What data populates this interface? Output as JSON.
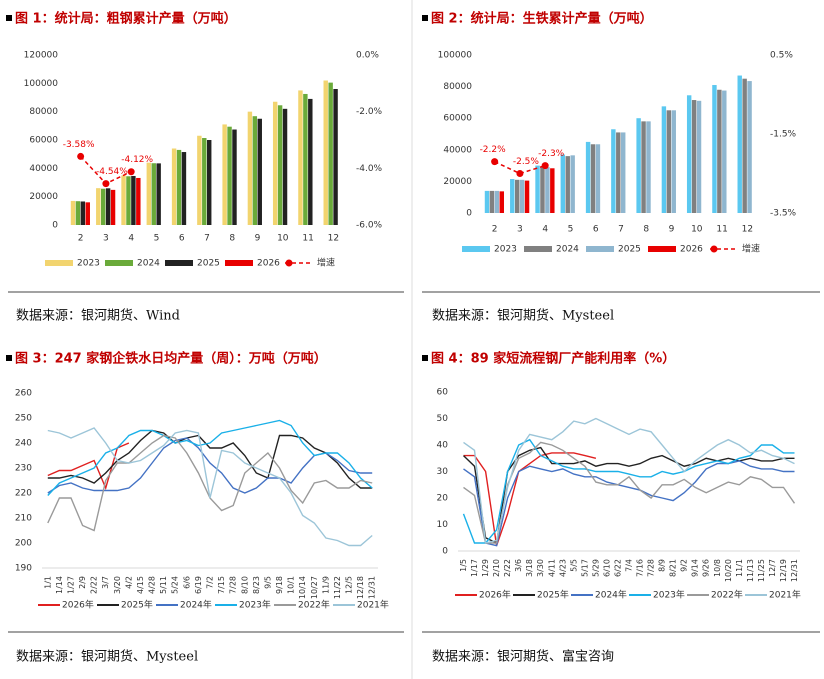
{
  "chart_data": [
    {
      "type": "bar",
      "title": "图 1：统计局：粗钢累计产量（万吨）",
      "source": "数据来源：银河期货、Wind",
      "categories": [
        "2",
        "3",
        "4",
        "5",
        "6",
        "7",
        "8",
        "9",
        "10",
        "11",
        "12"
      ],
      "series": [
        {
          "name": "2023",
          "color": "#f2d46f",
          "values": [
            17000,
            26000,
            35000,
            44000,
            54000,
            63000,
            71000,
            80000,
            87000,
            95000,
            102000
          ]
        },
        {
          "name": "2024",
          "color": "#6aaa3a",
          "values": [
            16800,
            25600,
            34400,
            43600,
            53000,
            61400,
            69400,
            76800,
            84500,
            92500,
            100500
          ]
        },
        {
          "name": "2025",
          "color": "#222222",
          "values": [
            16600,
            25900,
            34600,
            43500,
            51500,
            60000,
            67400,
            75000,
            82000,
            89000,
            96000
          ]
        },
        {
          "name": "2026",
          "color": "#e80000",
          "values": [
            16000,
            24800,
            33200,
            null,
            null,
            null,
            null,
            null,
            null,
            null,
            null
          ]
        },
        {
          "name": "增速",
          "color": "#e80000",
          "type": "line",
          "axis": "y2",
          "values": [
            -3.58,
            -4.54,
            -4.12,
            null,
            null,
            null,
            null,
            null,
            null,
            null,
            null
          ],
          "value_labels": [
            "-3.58%",
            "-4.54%",
            "-4.12%",
            null,
            null,
            null,
            null,
            null,
            null,
            null,
            null
          ]
        }
      ],
      "ylim": [
        0,
        120000
      ],
      "yticks": [
        0,
        20000,
        40000,
        60000,
        80000,
        100000,
        120000
      ],
      "y2lim": [
        -6,
        0
      ],
      "y2ticks": [
        {
          "value": -6,
          "label": "-6.0%"
        },
        {
          "value": -4,
          "label": "-4.0%"
        },
        {
          "value": -2,
          "label": "-2.0%"
        },
        {
          "value": 0,
          "label": "0.0%"
        }
      ],
      "grid": false,
      "legend": "bottom"
    },
    {
      "type": "bar",
      "title": "图 2：统计局：生铁累计产量（万吨）",
      "source": "数据来源：银河期货、Mysteel",
      "categories": [
        "2",
        "3",
        "4",
        "5",
        "6",
        "7",
        "8",
        "9",
        "10",
        "11",
        "12"
      ],
      "series": [
        {
          "name": "2023",
          "color": "#5bc8f0",
          "values": [
            14000,
            21500,
            30000,
            37000,
            45000,
            53000,
            60000,
            67500,
            74500,
            81000,
            87000
          ]
        },
        {
          "name": "2024",
          "color": "#808080",
          "values": [
            14000,
            21000,
            29000,
            36000,
            43500,
            51000,
            58000,
            65000,
            71500,
            78000,
            85000
          ]
        },
        {
          "name": "2025",
          "color": "#8fb6cf",
          "values": [
            14000,
            21000,
            29000,
            36500,
            43500,
            51000,
            58000,
            65000,
            71000,
            77500,
            83500
          ]
        },
        {
          "name": "2026",
          "color": "#e80000",
          "values": [
            13700,
            20500,
            28300,
            null,
            null,
            null,
            null,
            null,
            null,
            null,
            null
          ]
        },
        {
          "name": "增速",
          "color": "#e80000",
          "type": "line",
          "axis": "y2",
          "values": [
            -2.2,
            -2.5,
            -2.3,
            null,
            null,
            null,
            null,
            null,
            null,
            null,
            null
          ],
          "value_labels": [
            "-2.2%",
            "-2.5%",
            "-2.3%",
            null,
            null,
            null,
            null,
            null,
            null,
            null,
            null
          ]
        }
      ],
      "ylim": [
        0,
        100000
      ],
      "yticks": [
        0,
        20000,
        40000,
        60000,
        80000,
        100000
      ],
      "y2lim": [
        -3.5,
        0.5
      ],
      "y2ticks": [
        {
          "value": -3.5,
          "label": "-3.5%"
        },
        {
          "value": -1.5,
          "label": "-1.5%"
        },
        {
          "value": 0.5,
          "label": "0.5%"
        }
      ],
      "grid": false,
      "legend": "bottom"
    },
    {
      "type": "line",
      "title": "图 3：247 家钢企铁水日均产量（周）：万吨（万吨）",
      "source": "数据来源：银河期货、Mysteel",
      "categories": [
        "1/1",
        "1/14",
        "1/27",
        "2/9",
        "2/22",
        "3/7",
        "3/20",
        "4/2",
        "4/15",
        "4/28",
        "5/11",
        "5/24",
        "6/6",
        "6/19",
        "7/2",
        "7/15",
        "7/28",
        "8/10",
        "8/23",
        "9/5",
        "9/18",
        "10/1",
        "10/14",
        "10/27",
        "11/9",
        "11/22",
        "12/5",
        "12/18",
        "12/31"
      ],
      "series": [
        {
          "name": "2026年",
          "color": "#e02020",
          "values": [
            227,
            229,
            229,
            231,
            233,
            222,
            238,
            240,
            null,
            null,
            null,
            null,
            null,
            null,
            null,
            null,
            null,
            null,
            null,
            null,
            null,
            null,
            null,
            null,
            null,
            null,
            null,
            null,
            null
          ]
        },
        {
          "name": "2025年",
          "color": "#222222",
          "values": [
            226,
            226,
            227,
            226,
            224,
            228,
            233,
            236,
            241,
            245,
            244,
            240,
            242,
            243,
            238,
            238,
            240,
            235,
            228,
            226,
            243,
            243,
            242,
            238,
            236,
            232,
            226,
            222,
            222
          ]
        },
        {
          "name": "2024年",
          "color": "#4472c4",
          "values": [
            220,
            223,
            224,
            222,
            221,
            221,
            221,
            222,
            226,
            232,
            238,
            241,
            242,
            238,
            232,
            228,
            222,
            220,
            222,
            226,
            226,
            224,
            230,
            235,
            236,
            233,
            229,
            228,
            228
          ]
        },
        {
          "name": "2023年",
          "color": "#1ab0e8",
          "values": [
            219,
            224,
            226,
            228,
            230,
            236,
            238,
            243,
            245,
            245,
            243,
            240,
            241,
            239,
            240,
            244,
            245,
            246,
            247,
            248,
            249,
            247,
            240,
            235,
            236,
            236,
            232,
            226,
            222
          ]
        },
        {
          "name": "2022年",
          "color": "#9a9a9a",
          "values": [
            208,
            218,
            218,
            207,
            205,
            225,
            232,
            232,
            236,
            240,
            243,
            242,
            236,
            228,
            218,
            213,
            215,
            228,
            232,
            236,
            230,
            221,
            216,
            224,
            225,
            222,
            222,
            225,
            224
          ]
        },
        {
          "name": "2021年",
          "color": "#9cc5d8",
          "values": [
            245,
            244,
            242,
            244,
            246,
            240,
            233,
            232,
            233,
            236,
            239,
            244,
            245,
            244,
            218,
            237,
            236,
            232,
            230,
            228,
            226,
            220,
            211,
            208,
            202,
            201,
            199,
            199,
            203
          ]
        }
      ],
      "ylim": [
        190,
        260
      ],
      "yticks": [
        190,
        200,
        210,
        220,
        230,
        240,
        250,
        260
      ],
      "grid": false,
      "legend": "bottom"
    },
    {
      "type": "line",
      "title": "图 4：89 家短流程钢厂产能利用率（%）",
      "source": "数据来源：银河期货、富宝咨询",
      "categories": [
        "1/5",
        "1/17",
        "1/29",
        "2/10",
        "2/22",
        "3/6",
        "3/18",
        "3/30",
        "4/11",
        "4/23",
        "5/5",
        "5/17",
        "5/29",
        "6/10",
        "6/22",
        "7/4",
        "7/16",
        "7/28",
        "8/9",
        "8/21",
        "9/2",
        "9/14",
        "9/26",
        "10/8",
        "10/20",
        "11/1",
        "11/13",
        "11/25",
        "12/7",
        "12/19",
        "12/31"
      ],
      "series": [
        {
          "name": "2026年",
          "color": "#e02020",
          "values": [
            36,
            36,
            30,
            2,
            14,
            30,
            33,
            36,
            37,
            37,
            37,
            36,
            35,
            null,
            null,
            null,
            null,
            null,
            null,
            null,
            null,
            null,
            null,
            null,
            null,
            null,
            null,
            null,
            null,
            null,
            null
          ]
        },
        {
          "name": "2025年",
          "color": "#222222",
          "values": [
            36,
            32,
            5,
            3,
            30,
            36,
            38,
            39,
            33,
            33,
            33,
            34,
            32,
            33,
            33,
            32,
            33,
            35,
            36,
            34,
            32,
            33,
            35,
            34,
            35,
            34,
            35,
            34,
            34,
            35,
            35
          ]
        },
        {
          "name": "2024年",
          "color": "#4472c4",
          "values": [
            31,
            28,
            3,
            2,
            20,
            30,
            32,
            31,
            30,
            31,
            29,
            28,
            28,
            26,
            25,
            24,
            23,
            21,
            20,
            19,
            22,
            26,
            31,
            33,
            33,
            34,
            32,
            31,
            31,
            30,
            30
          ]
        },
        {
          "name": "2023年",
          "color": "#1ab0e8",
          "values": [
            14,
            3,
            3,
            8,
            30,
            40,
            42,
            36,
            34,
            32,
            31,
            31,
            30,
            30,
            30,
            29,
            28,
            28,
            30,
            29,
            30,
            32,
            33,
            34,
            33,
            35,
            36,
            40,
            40,
            37,
            37
          ]
        },
        {
          "name": "2022年",
          "color": "#9a9a9a",
          "values": [
            24,
            21,
            3,
            3,
            25,
            35,
            37,
            41,
            40,
            38,
            35,
            32,
            26,
            25,
            25,
            28,
            23,
            20,
            25,
            25,
            27,
            24,
            22,
            24,
            26,
            25,
            28,
            27,
            24,
            24,
            18
          ]
        },
        {
          "name": "2021年",
          "color": "#9cc5d8",
          "values": [
            41,
            38,
            3,
            4,
            24,
            38,
            44,
            43,
            42,
            45,
            49,
            48,
            50,
            48,
            46,
            44,
            46,
            45,
            40,
            35,
            30,
            34,
            37,
            40,
            42,
            40,
            37,
            38,
            36,
            35,
            33
          ]
        }
      ],
      "ylim": [
        0,
        60
      ],
      "yticks": [
        0,
        10,
        20,
        30,
        40,
        50,
        60
      ],
      "grid": false,
      "legend": "bottom"
    }
  ]
}
